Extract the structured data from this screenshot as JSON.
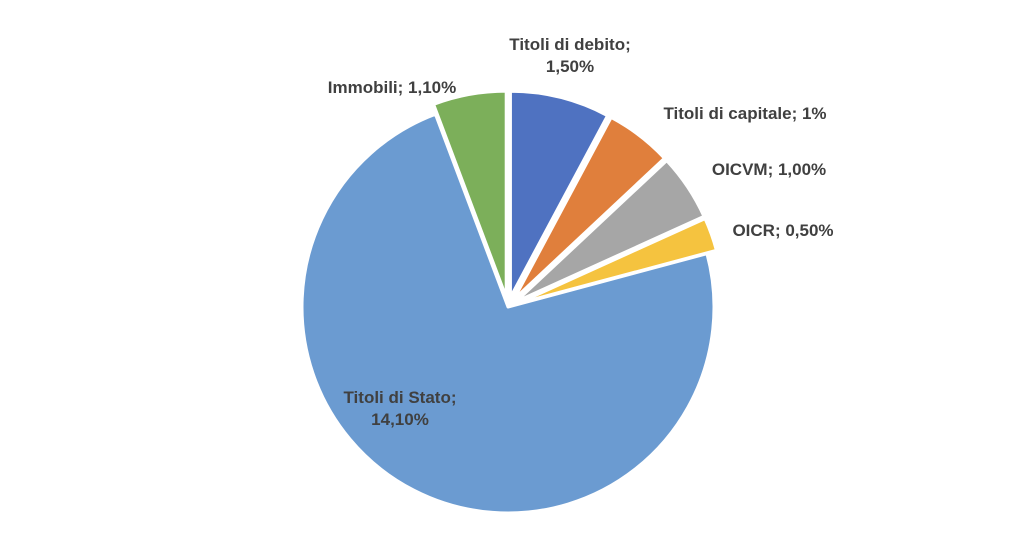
{
  "chart_data": {
    "type": "pie",
    "title": "",
    "labels": [
      "Titoli di debito",
      "Titoli di capitale",
      "OICVM",
      "OICR",
      "Titoli di Stato",
      "Immobili"
    ],
    "values": [
      1.5,
      1.0,
      1.0,
      0.5,
      14.1,
      1.1
    ],
    "colors": [
      "#4f72c1",
      "#e07f3c",
      "#a6a6a6",
      "#f5c33f",
      "#6b9bd1",
      "#7caf5a"
    ],
    "exploded": [
      true,
      true,
      true,
      true,
      false,
      true
    ],
    "legend": "none",
    "data_labels": [
      {
        "lines": [
          "Titoli di debito;",
          "1,50%"
        ]
      },
      {
        "lines": [
          "Titoli di capitale; 1%"
        ]
      },
      {
        "lines": [
          "OICVM; 1,00%"
        ]
      },
      {
        "lines": [
          "OICR; 0,50%"
        ]
      },
      {
        "lines": [
          "Titoli di Stato;",
          "14,10%"
        ]
      },
      {
        "lines": [
          "Immobili; 1,10%"
        ]
      }
    ]
  }
}
